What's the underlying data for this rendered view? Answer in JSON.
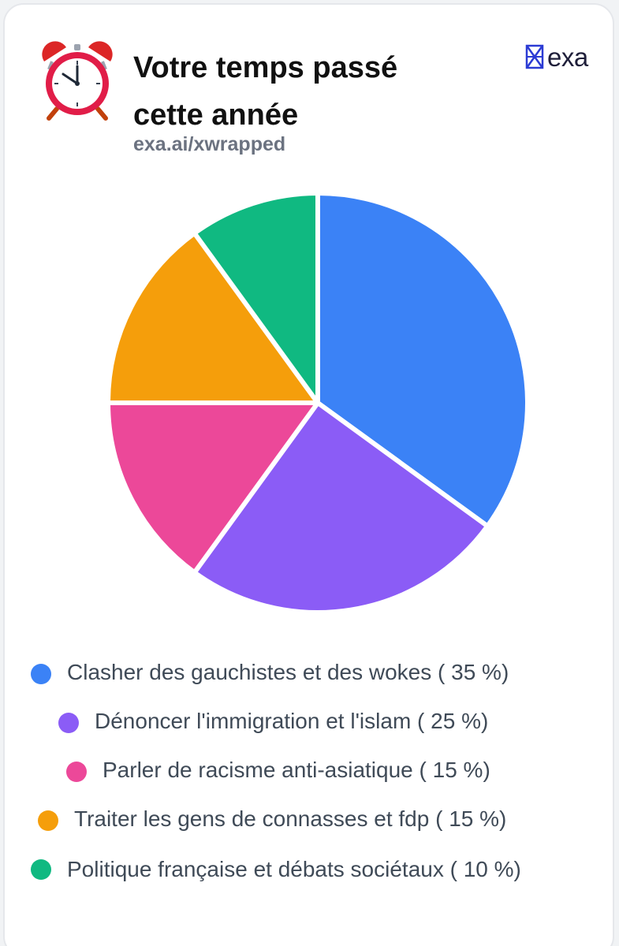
{
  "card": {
    "title": "Votre temps passé cette année",
    "subtitle": "exa.ai/xwrapped",
    "brand": "exa",
    "icons": {
      "header": "alarm-clock-icon",
      "brand": "exa-logo-icon"
    }
  },
  "colors": {
    "blue": "#3b82f6",
    "purple": "#8b5cf6",
    "pink": "#ec4899",
    "orange": "#f59e0b",
    "green": "#10b981"
  },
  "chart_data": {
    "type": "pie",
    "title": "",
    "slices": [
      {
        "label": "Clasher des gauchistes et des wokes ( 35 %)",
        "value": 35,
        "color": "#3b82f6"
      },
      {
        "label": "Dénoncer l'immigration et l'islam ( 25 %)",
        "value": 25,
        "color": "#8b5cf6"
      },
      {
        "label": "Parler de racisme anti-asiatique ( 15 %)",
        "value": 15,
        "color": "#ec4899"
      },
      {
        "label": "Traiter les gens de connasses et fdp ( 15 %)",
        "value": 15,
        "color": "#f59e0b"
      },
      {
        "label": "Politique française et débats sociétaux ( 10 %)",
        "value": 10,
        "color": "#10b981"
      }
    ],
    "legend_position": "bottom"
  }
}
